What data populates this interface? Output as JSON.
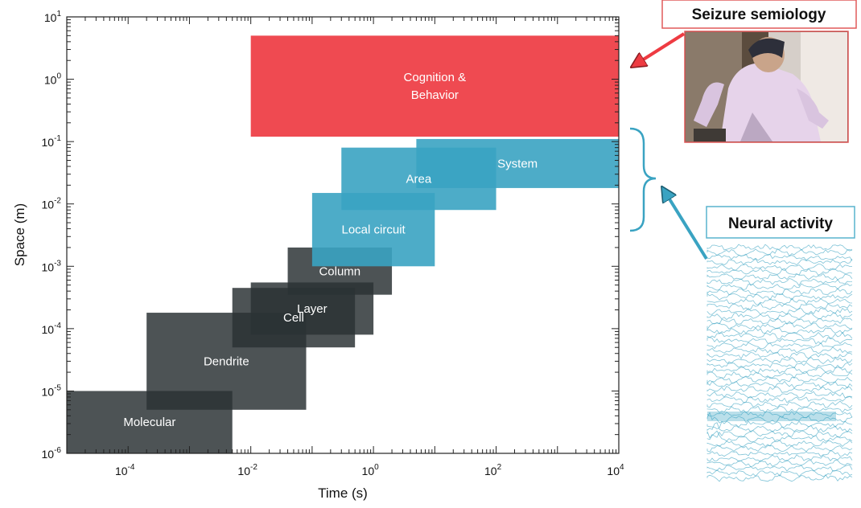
{
  "colors": {
    "behavior": "#ee3b42",
    "neural": "#3aa3c2",
    "cellular": "#2b3235",
    "semiology_border": "#e05a5a",
    "neural_border": "#58b4cd"
  },
  "chart_data": {
    "type": "area",
    "xlabel": "Time (s)",
    "ylabel": "Space (m)",
    "xscale": "log",
    "yscale": "log",
    "xlim": [
      1e-05,
      10000
    ],
    "ylim": [
      1e-06,
      10
    ],
    "x_tick_labels": [
      {
        "base": "10",
        "exp": "-4"
      },
      {
        "base": "10",
        "exp": "-2"
      },
      {
        "base": "10",
        "exp": "0"
      },
      {
        "base": "10",
        "exp": "2"
      },
      {
        "base": "10",
        "exp": "4"
      }
    ],
    "y_tick_labels": [
      {
        "base": "10",
        "exp": "-6"
      },
      {
        "base": "10",
        "exp": "-5"
      },
      {
        "base": "10",
        "exp": "-4"
      },
      {
        "base": "10",
        "exp": "-3"
      },
      {
        "base": "10",
        "exp": "-2"
      },
      {
        "base": "10",
        "exp": "-1"
      },
      {
        "base": "10",
        "exp": "0"
      },
      {
        "base": "10",
        "exp": "1"
      }
    ],
    "regions": [
      {
        "id": "molecular",
        "label": [
          "Molecular"
        ],
        "group": "cellular",
        "time": [
          1e-05,
          0.005
        ],
        "space": [
          1e-06,
          1e-05
        ]
      },
      {
        "id": "dendrite",
        "label": [
          "Dendrite"
        ],
        "group": "cellular",
        "time": [
          0.0002,
          0.08
        ],
        "space": [
          5e-06,
          0.00018
        ]
      },
      {
        "id": "cell",
        "label": [
          "Cell"
        ],
        "group": "cellular",
        "time": [
          0.005,
          0.5
        ],
        "space": [
          5e-05,
          0.00045
        ]
      },
      {
        "id": "layer",
        "label": [
          "Layer"
        ],
        "group": "cellular",
        "time": [
          0.01,
          1.0
        ],
        "space": [
          8e-05,
          0.00055
        ]
      },
      {
        "id": "column",
        "label": [
          "Column"
        ],
        "group": "cellular",
        "time": [
          0.04,
          2.0
        ],
        "space": [
          0.00035,
          0.002
        ]
      },
      {
        "id": "local-circuit",
        "label": [
          "Local circuit"
        ],
        "group": "neural",
        "time": [
          0.1,
          10
        ],
        "space": [
          0.001,
          0.015
        ]
      },
      {
        "id": "area",
        "label": [
          "Area"
        ],
        "group": "neural",
        "time": [
          0.3,
          100
        ],
        "space": [
          0.008,
          0.08
        ]
      },
      {
        "id": "system",
        "label": [
          "System"
        ],
        "group": "neural",
        "time": [
          5,
          10000
        ],
        "space": [
          0.018,
          0.11
        ]
      },
      {
        "id": "cognition-behavior",
        "label": [
          "Cognition &",
          "Behavior"
        ],
        "group": "behavior",
        "time": [
          0.01,
          10000
        ],
        "space": [
          0.12,
          5
        ]
      }
    ]
  },
  "callouts": {
    "semiology": {
      "title": "Seizure semiology",
      "image": "seizure-patient-photo"
    },
    "neural": {
      "title": "Neural activity",
      "image": "eeg-traces"
    }
  }
}
